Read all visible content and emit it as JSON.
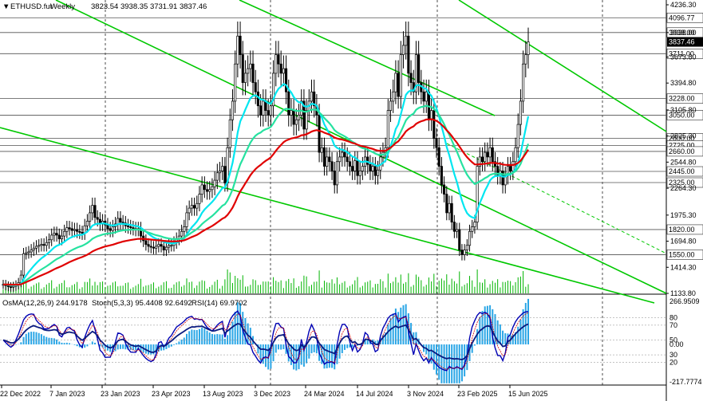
{
  "header": {
    "symbol": "ETHUSD.fut",
    "timeframe": "Weekly",
    "ohlc": "3823.54 3938.35 3731.91 3837.46"
  },
  "indicator_header": {
    "osma": "OsMA(12,26,9) 244.9178",
    "stoch": "Stoch(5,3,3) 95.4408 92.6492",
    "rsi": "RSI(14) 69.9702"
  },
  "colors": {
    "up": "#000000",
    "down": "#000000",
    "ema_fast": "#00e6f0",
    "ema_mid": "#26e2a0",
    "ema_slow": "#e00000",
    "channel": "#00c800",
    "volume": "#00b400",
    "histogram": "#2aa6e6",
    "stoch_main": "#0000b4",
    "stoch_signal": "#d00000",
    "price_tag_bg": "#000000",
    "level_tag_bg": "#ffffff"
  },
  "chart_data": {
    "type": "candlestick",
    "price_axis_ticks": [
      "4236.30",
      "3938.00",
      "3673.80",
      "3394.80",
      "3105.80",
      "2825.30",
      "2544.80",
      "2264.30",
      "1975.30",
      "1694.80",
      "1414.30",
      "1133.80"
    ],
    "horizontal_levels": [
      "4096.77",
      "3938.00",
      "3711.00",
      "3228.00",
      "3050.00",
      "2800.00",
      "2725.00",
      "2660.00",
      "2445.00",
      "2325.00",
      "1820.00",
      "1550.00"
    ],
    "current_price": "3837.46",
    "ylim": [
      1133.8,
      4236.3
    ],
    "x_labels": [
      "22 Dec 2022",
      "7 Jan 2023",
      "23 Jan 2023",
      "23 Apr 2023",
      "13 Aug 2023",
      "3 Dec 2023",
      "24 Mar 2024",
      "14 Jul 2024",
      "3 Nov 2024",
      "23 Feb 2025",
      "15 Jun 2025"
    ],
    "sub_axis_ticks": [
      "266.9509",
      "80",
      "70",
      "50",
      "0.00",
      "30",
      "20",
      "-217.7774"
    ],
    "closes": [
      1230,
      1215,
      1205,
      1200,
      1210,
      1225,
      1250,
      1330,
      1560,
      1570,
      1580,
      1600,
      1620,
      1640,
      1650,
      1660,
      1650,
      1680,
      1710,
      1760,
      1780,
      1760,
      1720,
      1750,
      1800,
      1840,
      1830,
      1810,
      1820,
      1800,
      1790,
      1780,
      1860,
      1910,
      2000,
      2080,
      1950,
      1930,
      1880,
      1910,
      1870,
      1830,
      1810,
      1850,
      1880,
      1940,
      1900,
      1890,
      1860,
      1850,
      1840,
      1830,
      1820,
      1830,
      1750,
      1700,
      1660,
      1640,
      1630,
      1620,
      1640,
      1660,
      1640,
      1600,
      1630,
      1650,
      1650,
      1680,
      1720,
      1750,
      1800,
      1850,
      2000,
      2050,
      2080,
      2050,
      2100,
      2200,
      2300,
      2250,
      2230,
      2250,
      2280,
      2350,
      2430,
      2450,
      2500,
      2320,
      2700,
      3000,
      3200,
      3600,
      3900,
      3700,
      3400,
      3500,
      3550,
      3600,
      3400,
      3300,
      3150,
      3050,
      3200,
      3100,
      3050,
      3150,
      3500,
      3700,
      3600,
      3500,
      3550,
      3300,
      3050,
      3100,
      2950,
      3000,
      3050,
      3200,
      2900,
      3100,
      3200,
      3300,
      3150,
      3050,
      2650,
      2700,
      2500,
      2600,
      2550,
      2450,
      2300,
      2550,
      2600,
      2650,
      2600,
      2550,
      2500,
      2450,
      2560,
      2400,
      2450,
      2500,
      2600,
      2520,
      2450,
      2500,
      2400,
      2460,
      2600,
      2650,
      2700,
      3100,
      3200,
      3300,
      3500,
      3250,
      3700,
      3800,
      3900,
      3500,
      3400,
      3300,
      3700,
      3400,
      3300,
      3200,
      3300,
      3000,
      3100,
      2800,
      2700,
      2500,
      2300,
      2200,
      2000,
      2100,
      1900,
      1800,
      1820,
      1600,
      1550,
      1600,
      1650,
      1800,
      1850,
      1900,
      2500,
      2600,
      2550,
      2650,
      2600,
      2700,
      2550,
      2500,
      2400,
      2450,
      2300,
      2400,
      2500,
      2450,
      2550,
      2700,
      2950,
      3200,
      3600,
      3700,
      3837.46
    ]
  }
}
